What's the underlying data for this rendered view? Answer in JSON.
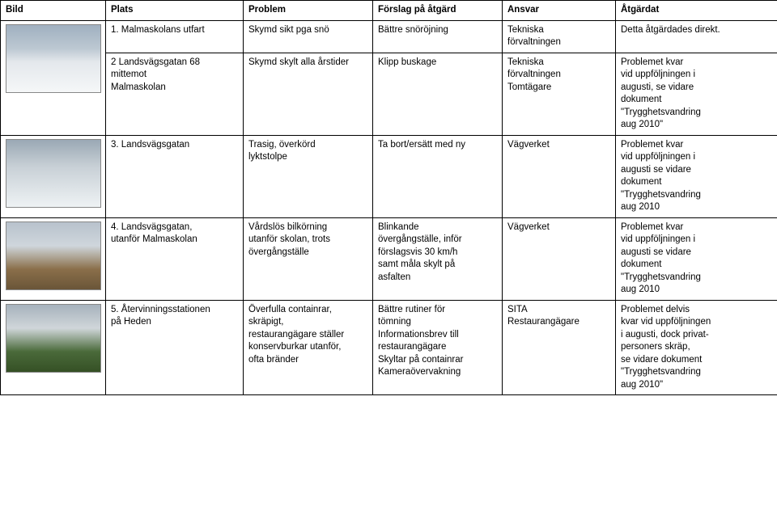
{
  "table": {
    "headers": {
      "bild": "Bild",
      "plats": "Plats",
      "problem": "Problem",
      "forslag": "Förslag på åtgärd",
      "ansvar": "Ansvar",
      "atgardat": "Åtgärdat"
    },
    "rows": [
      {
        "plats": "1. Malmaskolans utfart",
        "problem": "Skymd sikt pga snö",
        "forslag": "Bättre snöröjning",
        "ansvar": "Tekniska\nförvaltningen",
        "atgardat": "Detta åtgärdades direkt."
      },
      {
        "plats": "2 Landsvägsgatan 68\nmittemot\nMalmaskolan",
        "problem": "Skymd skylt alla årstider",
        "forslag": "Klipp buskage",
        "ansvar": "Tekniska\nförvaltningen\nTomtägare",
        "atgardat": "Problemet kvar\nvid uppföljningen i\naugusti, se vidare\ndokument\n\"Trygghetsvandring\n aug 2010\""
      },
      {
        "plats": "3. Landsvägsgatan",
        "problem": "Trasig, överkörd\nlyktstolpe",
        "forslag": "Ta bort/ersätt med ny",
        "ansvar": "Vägverket",
        "atgardat": "Problemet kvar\nvid uppföljningen i\naugusti se vidare\ndokument\n\"Trygghetsvandring\naug 2010"
      },
      {
        "plats": "4. Landsvägsgatan,\nutanför Malmaskolan",
        "problem": "Vårdslös bilkörning\nutanför skolan, trots\növergångställe",
        "forslag": "Blinkande\növergångställe, inför\nförslagsvis 30 km/h\nsamt måla skylt på\nasfalten",
        "ansvar": "Vägverket",
        "atgardat": "Problemet kvar\nvid uppföljningen i\n augusti se vidare\ndokument\n\"Trygghetsvandring\naug 2010"
      },
      {
        "plats": "5. Återvinningsstationen\npå Heden",
        "problem": "Överfulla containrar,\nskräpigt,\nrestaurangägare ställer\nkonservburkar utanför,\nofta bränder",
        "forslag": "Bättre rutiner för\ntömning\nInformationsbrev till\nrestaurangägare\nSkyltar på containrar\nKameraövervakning",
        "ansvar": "SITA\nRestaurangägare",
        "atgardat": "Problemet delvis\nkvar vid uppföljningen\ni augusti, dock privat-\npersoners skräp,\nse vidare dokument\n\"Trygghetsvandring\naug 2010\""
      }
    ]
  },
  "styling": {
    "border_color": "#000000",
    "background_color": "#ffffff",
    "font_family": "Arial",
    "font_size_pt": 9,
    "header_weight": "bold",
    "image_placeholder_colors": [
      "#6b7a8a",
      "#6b7a8a",
      "#6b7a8a",
      "#8a6f4a",
      "#4a6a3a"
    ]
  }
}
